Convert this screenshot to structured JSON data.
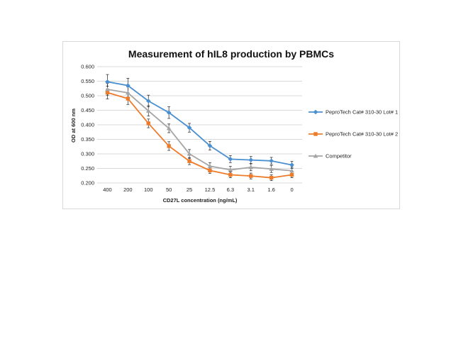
{
  "chart_data": {
    "type": "line",
    "title": "Measurement of hIL8 production by PBMCs",
    "xlabel": "CD27L concentration (ng/mL)",
    "ylabel": "OD at 600 nm",
    "categories": [
      "400",
      "200",
      "100",
      "50",
      "25",
      "12.5",
      "6.3",
      "3.1",
      "1.6",
      "0"
    ],
    "ylim": [
      0.2,
      0.6
    ],
    "yticks": [
      0.2,
      0.25,
      0.3,
      0.35,
      0.4,
      0.45,
      0.5,
      0.55,
      0.6
    ],
    "ytick_labels": [
      "0.200",
      "0.250",
      "0.300",
      "0.350",
      "0.400",
      "0.450",
      "0.500",
      "0.550",
      "0.600"
    ],
    "grid": true,
    "legend_position": "right",
    "series": [
      {
        "name": "PeproTech Cat# 310-30 Lot# 1",
        "color": "#4a8fd0",
        "marker": "diamond",
        "values": [
          0.548,
          0.535,
          0.482,
          0.442,
          0.39,
          0.328,
          0.282,
          0.279,
          0.276,
          0.262
        ],
        "errors": [
          0.025,
          0.025,
          0.02,
          0.02,
          0.015,
          0.015,
          0.012,
          0.012,
          0.012,
          0.012
        ]
      },
      {
        "name": "PeproTech Cat# 310-30 Lot# 2",
        "color": "#ee7b2a",
        "marker": "square",
        "values": [
          0.511,
          0.49,
          0.405,
          0.327,
          0.275,
          0.243,
          0.228,
          0.224,
          0.218,
          0.228
        ],
        "errors": [
          0.022,
          0.02,
          0.015,
          0.015,
          0.012,
          0.01,
          0.01,
          0.01,
          0.01,
          0.01
        ]
      },
      {
        "name": "Competitor",
        "color": "#a5a5a5",
        "marker": "triangle",
        "values": [
          0.522,
          0.51,
          0.448,
          0.388,
          0.3,
          0.258,
          0.245,
          0.254,
          0.248,
          0.242
        ],
        "errors": [
          0.02,
          0.02,
          0.018,
          0.015,
          0.015,
          0.012,
          0.012,
          0.012,
          0.012,
          0.012
        ]
      }
    ]
  }
}
